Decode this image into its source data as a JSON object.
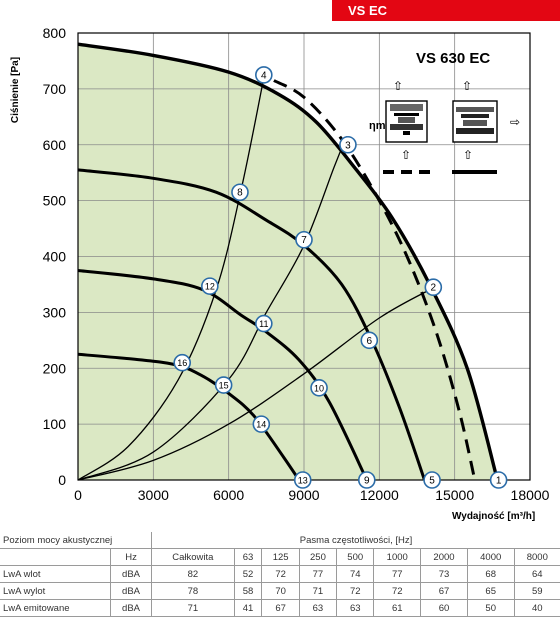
{
  "header": {
    "badge": "VS EC"
  },
  "chart_data": {
    "type": "line",
    "title": "VS 630 EC",
    "xlabel": "Wydajność [m³/h]",
    "ylabel": "Ciśnienie [Pa]",
    "xlim": [
      0,
      18000
    ],
    "ylim": [
      0,
      800
    ],
    "xticks": [
      0,
      3000,
      6000,
      9000,
      12000,
      15000,
      18000
    ],
    "yticks": [
      0,
      100,
      200,
      300,
      400,
      500,
      600,
      700,
      800
    ],
    "eta_label": "ηmax",
    "grid": true,
    "fan_curves": [
      {
        "points": [
          [
            0,
            780
          ],
          [
            3000,
            760
          ],
          [
            6000,
            730
          ],
          [
            8000,
            690
          ],
          [
            9500,
            640
          ],
          [
            11000,
            560
          ],
          [
            12500,
            470
          ],
          [
            14000,
            350
          ],
          [
            15500,
            200
          ],
          [
            16700,
            0
          ]
        ]
      },
      {
        "points": [
          [
            0,
            555
          ],
          [
            3000,
            540
          ],
          [
            5500,
            515
          ],
          [
            7500,
            465
          ],
          [
            9000,
            420
          ],
          [
            10500,
            350
          ],
          [
            11700,
            250
          ],
          [
            12800,
            130
          ],
          [
            13800,
            0
          ]
        ]
      },
      {
        "points": [
          [
            0,
            375
          ],
          [
            3000,
            360
          ],
          [
            5000,
            340
          ],
          [
            6500,
            295
          ],
          [
            7500,
            265
          ],
          [
            8800,
            215
          ],
          [
            10000,
            140
          ],
          [
            11500,
            0
          ]
        ]
      },
      {
        "points": [
          [
            0,
            225
          ],
          [
            2500,
            215
          ],
          [
            4000,
            205
          ],
          [
            5000,
            185
          ],
          [
            6000,
            155
          ],
          [
            7000,
            115
          ],
          [
            8200,
            40
          ],
          [
            8800,
            0
          ]
        ]
      }
    ],
    "dashed_curve": {
      "points": [
        [
          7800,
          715
        ],
        [
          9000,
          685
        ],
        [
          10500,
          610
        ],
        [
          12000,
          500
        ],
        [
          13200,
          390
        ],
        [
          14300,
          260
        ],
        [
          15200,
          120
        ],
        [
          15800,
          0
        ]
      ]
    },
    "system_curves": [
      {
        "points": [
          [
            0,
            0
          ],
          [
            2000,
            60
          ],
          [
            4000,
            180
          ],
          [
            5500,
            340
          ],
          [
            6500,
            520
          ],
          [
            7400,
            720
          ]
        ]
      },
      {
        "points": [
          [
            0,
            0
          ],
          [
            3000,
            50
          ],
          [
            6000,
            180
          ],
          [
            7500,
            300
          ],
          [
            9000,
            420
          ],
          [
            10200,
            560
          ],
          [
            10700,
            615
          ]
        ]
      },
      {
        "points": [
          [
            0,
            0
          ],
          [
            3000,
            35
          ],
          [
            6000,
            100
          ],
          [
            9000,
            190
          ],
          [
            12000,
            290
          ],
          [
            14200,
            345
          ]
        ]
      }
    ],
    "region_fill": "#dbe8c4",
    "markers": [
      {
        "label": "1",
        "x": 16750,
        "y": 0
      },
      {
        "label": "2",
        "x": 14150,
        "y": 345
      },
      {
        "label": "3",
        "x": 10750,
        "y": 600
      },
      {
        "label": "4",
        "x": 7400,
        "y": 725
      },
      {
        "label": "5",
        "x": 14100,
        "y": 0
      },
      {
        "label": "6",
        "x": 11600,
        "y": 250
      },
      {
        "label": "7",
        "x": 9000,
        "y": 430
      },
      {
        "label": "8",
        "x": 6450,
        "y": 515
      },
      {
        "label": "9",
        "x": 11500,
        "y": 0
      },
      {
        "label": "10",
        "x": 9600,
        "y": 165
      },
      {
        "label": "11",
        "x": 7400,
        "y": 280
      },
      {
        "label": "12",
        "x": 5250,
        "y": 347
      },
      {
        "label": "13",
        "x": 8950,
        "y": 0
      },
      {
        "label": "14",
        "x": 7300,
        "y": 100
      },
      {
        "label": "15",
        "x": 5800,
        "y": 170
      },
      {
        "label": "16",
        "x": 4150,
        "y": 210
      }
    ],
    "legend_lines": [
      {
        "style": "dashed"
      },
      {
        "style": "solid"
      }
    ]
  },
  "table": {
    "title": "Poziom mocy akustycznej",
    "band_header": "Pasma częstotliwości, [Hz]",
    "hz": "Hz",
    "columns": [
      "Całkowita",
      "63",
      "125",
      "250",
      "500",
      "1000",
      "2000",
      "4000",
      "8000"
    ],
    "rows": [
      {
        "label": "LwA wlot",
        "unit": "dBA",
        "values": [
          "82",
          "52",
          "72",
          "77",
          "74",
          "77",
          "73",
          "68",
          "64"
        ]
      },
      {
        "label": "LwA wylot",
        "unit": "dBA",
        "values": [
          "78",
          "58",
          "70",
          "71",
          "72",
          "72",
          "67",
          "65",
          "59"
        ]
      },
      {
        "label": "LwA emitowane",
        "unit": "dBA",
        "values": [
          "71",
          "41",
          "67",
          "63",
          "63",
          "61",
          "60",
          "50",
          "40"
        ]
      }
    ]
  }
}
